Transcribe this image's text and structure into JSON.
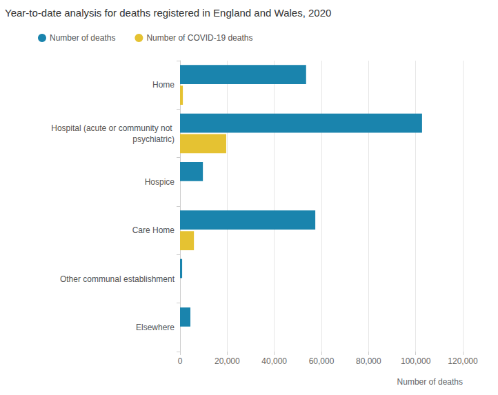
{
  "chart_data": {
    "type": "bar",
    "title": "Year-to-date analysis for deaths registered in England and Wales, 2020",
    "orientation": "horizontal",
    "categories": [
      "Home",
      "Hospital (acute or community not psychiatric)",
      "Hospice",
      "Care Home",
      "Other communal establishment",
      "Elsewhere"
    ],
    "series": [
      {
        "name": "Number of deaths",
        "color": "#1a84ad",
        "values": [
          53500,
          102700,
          9700,
          57400,
          900,
          4400
        ]
      },
      {
        "name": "Number of COVID-19 deaths",
        "color": "#e5c232",
        "values": [
          1200,
          19600,
          0,
          5900,
          0,
          0
        ]
      }
    ],
    "xlabel": "Number of deaths",
    "xlim": [
      0,
      120000
    ],
    "xticks": [
      0,
      {
        "value": 20000,
        "label": "20,000"
      },
      {
        "value": 40000,
        "label": "40,000"
      },
      {
        "value": 60000,
        "label": "60,000"
      },
      {
        "value": 80000,
        "label": "80,000"
      },
      {
        "value": 100000,
        "label": "100,000"
      },
      {
        "value": 120000,
        "label": "120,000"
      }
    ],
    "grid": true,
    "legend": "top left"
  }
}
